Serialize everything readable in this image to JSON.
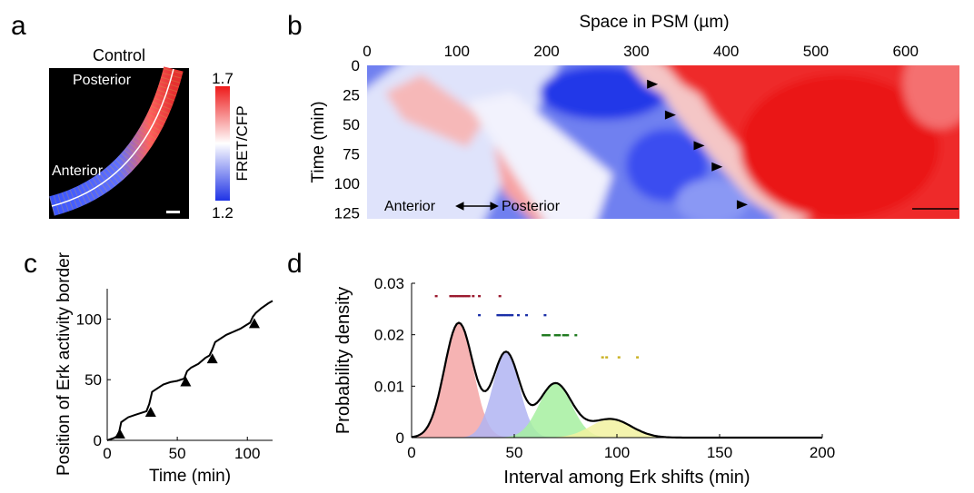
{
  "panels": {
    "a": {
      "letter": "a",
      "title": "Control",
      "label_posterior": "Posterior",
      "label_anterior": "Anterior",
      "colorbar": {
        "max": "1.7",
        "min": "1.2",
        "label": "FRET/CFP"
      }
    },
    "b": {
      "letter": "b",
      "label_anterior": "Anterior",
      "label_posterior": "Posterior"
    },
    "c": {
      "letter": "c"
    },
    "d": {
      "letter": "d"
    }
  },
  "chart_data": [
    {
      "id": "b",
      "type": "heatmap",
      "xlabel": "Space in PSM (µm)",
      "ylabel": "Time (min)",
      "xlim": [
        0,
        660
      ],
      "ylim": [
        0,
        130
      ],
      "x_ticks": [
        "0",
        "100",
        "200",
        "300",
        "400",
        "500",
        "600"
      ],
      "x_tick_values": [
        0,
        100,
        200,
        300,
        400,
        500,
        600
      ],
      "y_ticks": [
        "0",
        "25",
        "50",
        "75",
        "100",
        "125"
      ],
      "y_tick_values": [
        0,
        25,
        50,
        75,
        100,
        125
      ],
      "y_inverted": true,
      "x_axis_position": "top",
      "colors": {
        "high": "#ee1a1a",
        "mid": "#ffffff",
        "low": "#1f33e6"
      },
      "erk_border": [
        {
          "time": 0,
          "space": 292
        },
        {
          "time": 16,
          "space": 310
        },
        {
          "time": 25,
          "space": 330
        },
        {
          "time": 40,
          "space": 342
        },
        {
          "time": 55,
          "space": 358
        },
        {
          "time": 70,
          "space": 375
        },
        {
          "time": 85,
          "space": 392
        },
        {
          "time": 100,
          "space": 410
        },
        {
          "time": 115,
          "space": 428
        },
        {
          "time": 128,
          "space": 455
        }
      ],
      "markers": [
        {
          "time": 16,
          "space": 318
        },
        {
          "time": 42,
          "space": 338
        },
        {
          "time": 68,
          "space": 370
        },
        {
          "time": 86,
          "space": 390
        },
        {
          "time": 118,
          "space": 418
        }
      ]
    },
    {
      "id": "c",
      "type": "line",
      "xlabel": "Time (min)",
      "ylabel": "Position of Erk activity border",
      "xlim": [
        0,
        118
      ],
      "ylim": [
        0,
        125
      ],
      "x_ticks": [
        0,
        50,
        100
      ],
      "y_ticks": [
        0,
        50,
        100
      ],
      "x": [
        0,
        5,
        8,
        10,
        15,
        20,
        28,
        30,
        32,
        40,
        45,
        50,
        55,
        57,
        60,
        65,
        70,
        73,
        75,
        77,
        85,
        95,
        102,
        104,
        106,
        110,
        115,
        118
      ],
      "y": [
        0,
        2,
        4,
        15,
        19,
        21,
        24,
        30,
        40,
        46,
        48,
        49,
        51,
        57,
        60,
        63,
        68,
        70,
        75,
        81,
        87,
        92,
        97,
        102,
        105,
        109,
        113,
        115
      ],
      "markers": [
        {
          "x": 9,
          "y": 0
        },
        {
          "x": 31,
          "y": 18
        },
        {
          "x": 56,
          "y": 43
        },
        {
          "x": 75,
          "y": 62
        },
        {
          "x": 105,
          "y": 91
        }
      ]
    },
    {
      "id": "d",
      "type": "area",
      "xlabel": "Interval among Erk shifts (min)",
      "ylabel": "Probability density",
      "xlim": [
        0,
        200
      ],
      "ylim": [
        0,
        0.03
      ],
      "x_ticks": [
        0,
        50,
        100,
        150,
        200
      ],
      "y_ticks": [
        "0",
        "0.01",
        "0.02",
        "0.03"
      ],
      "y_tick_values": [
        0,
        0.01,
        0.02,
        0.03
      ],
      "components": [
        {
          "mean": 23,
          "sd": 7,
          "peak": 0.0223,
          "color": "#f4a6a6"
        },
        {
          "mean": 46,
          "sd": 6.5,
          "peak": 0.0165,
          "color": "#b0b4f2"
        },
        {
          "mean": 70,
          "sd": 8,
          "peak": 0.0105,
          "color": "#a6f0a0"
        },
        {
          "mean": 97,
          "sd": 10,
          "peak": 0.0036,
          "color": "#f2f2a0"
        }
      ],
      "rug": [
        {
          "y": 0.0275,
          "color": "#9b1b30",
          "x": [
            12,
            19,
            20,
            21,
            22,
            23,
            24,
            25,
            26,
            27,
            28,
            30,
            33,
            43
          ]
        },
        {
          "y": 0.0238,
          "color": "#1a2fa8",
          "x": [
            33,
            42,
            43,
            44,
            45,
            46,
            47,
            48,
            49,
            52,
            56,
            65
          ]
        },
        {
          "y": 0.0199,
          "color": "#1f7a1f",
          "x": [
            64,
            65,
            66,
            67,
            70,
            71,
            72,
            74,
            75,
            76,
            80
          ]
        },
        {
          "y": 0.0156,
          "color": "#c9b020",
          "x": [
            93,
            95,
            101,
            110
          ]
        }
      ]
    }
  ]
}
